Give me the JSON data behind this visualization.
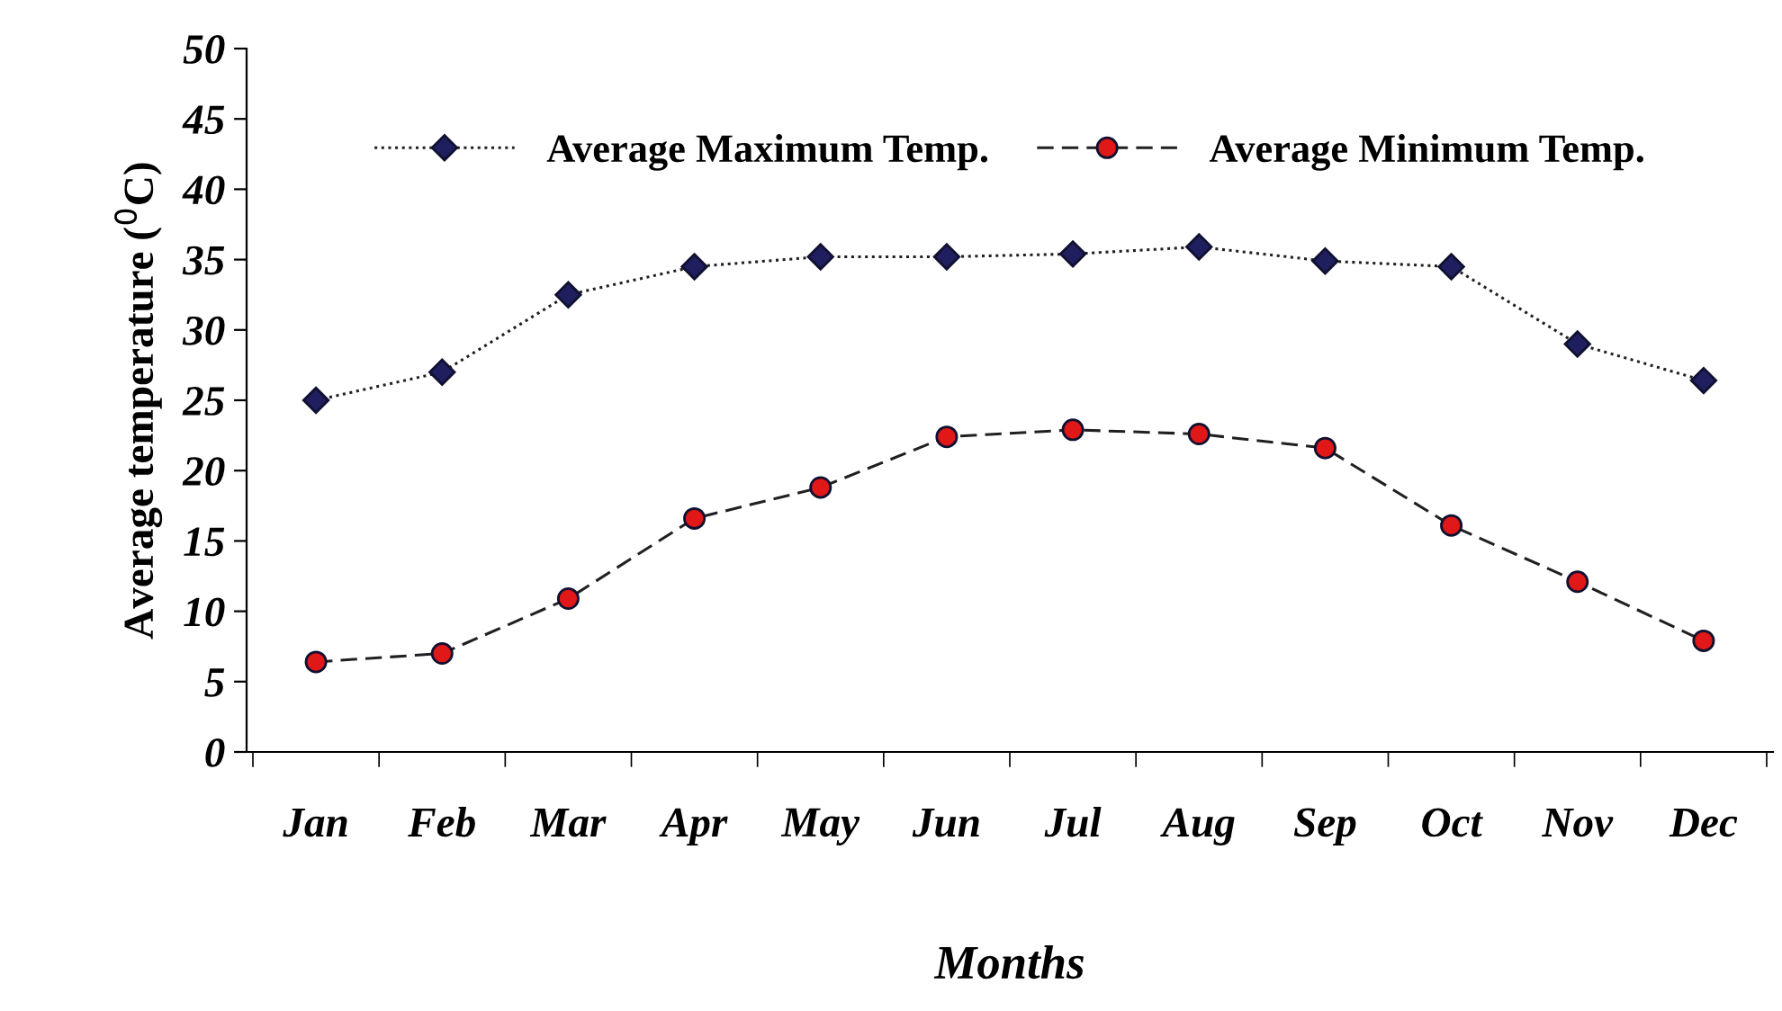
{
  "chart_data": {
    "type": "line",
    "xlabel": "Months",
    "ylabel": "Average temperature ($^{0}$C)",
    "categories": [
      "Jan",
      "Feb",
      "Mar",
      "Apr",
      "May",
      "Jun",
      "Jul",
      "Aug",
      "Sep",
      "Oct",
      "Nov",
      "Dec"
    ],
    "series": [
      {
        "name": "Average Maximum Temp.",
        "color": "#1f1f5f",
        "marker": "diamond",
        "line_style": "dotted",
        "values": [
          25,
          27,
          32.5,
          34.5,
          35.2,
          35.2,
          35.4,
          35.9,
          34.9,
          34.5,
          29,
          26.4
        ]
      },
      {
        "name": "Average Minimum Temp.",
        "color": "#e01818",
        "marker": "circle",
        "line_style": "dashed",
        "values": [
          6.4,
          7,
          10.9,
          16.6,
          18.8,
          22.4,
          22.9,
          22.6,
          21.6,
          16.1,
          12.1,
          7.9
        ]
      }
    ],
    "ylim": [
      0,
      50
    ],
    "yticks": [
      0,
      5,
      10,
      15,
      20,
      25,
      30,
      35,
      40,
      45,
      50
    ],
    "grid": false,
    "legend": "top"
  }
}
